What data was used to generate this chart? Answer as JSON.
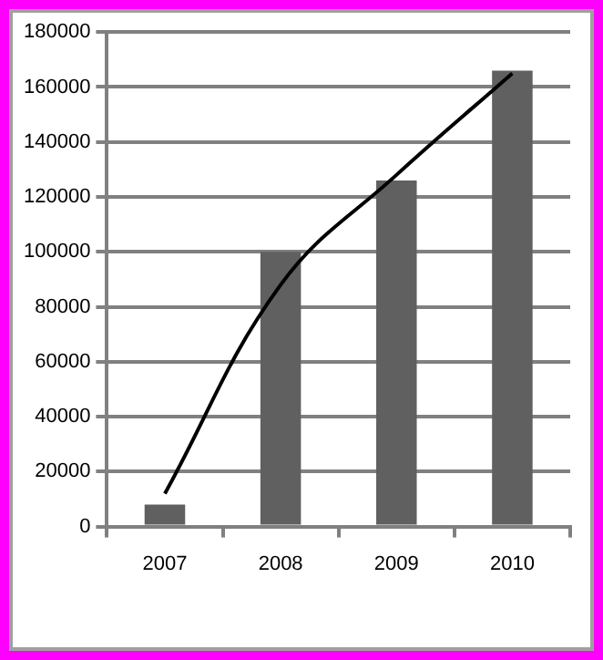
{
  "chart_data": {
    "type": "bar",
    "categories": [
      "2007",
      "2008",
      "2009",
      "2010"
    ],
    "series": [
      {
        "color": "#606060",
        "values": [
          8000,
          100000,
          126000,
          166000
        ]
      },
      {
        "type": "line",
        "color": "#000000",
        "values": [
          12000,
          88000,
          128000,
          165000
        ],
        "marker": "none",
        "line_style": "solid"
      }
    ],
    "ylim": [
      0,
      180000
    ],
    "yticks": [
      0,
      20000,
      40000,
      60000,
      80000,
      100000,
      120000,
      140000,
      160000,
      180000
    ],
    "grid": "y",
    "legend": false
  }
}
